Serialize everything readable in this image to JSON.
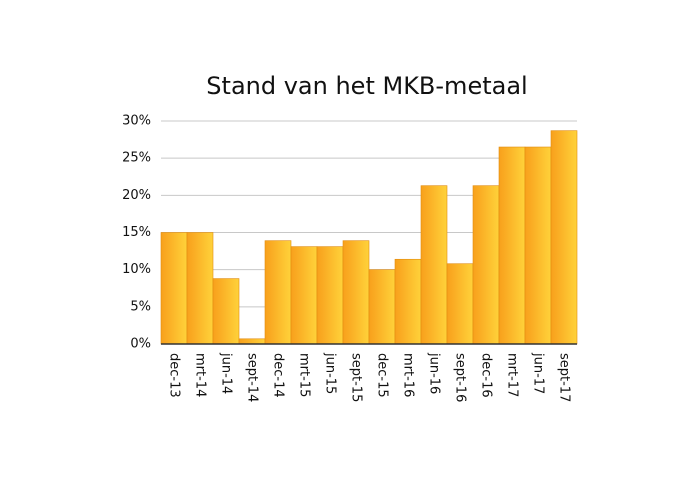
{
  "chart_data": {
    "type": "bar",
    "title": "Stand van het MKB-metaal",
    "categories": [
      "dec-13",
      "mrt-14",
      "jun-14",
      "sept-14",
      "dec-14",
      "mrt-15",
      "jun-15",
      "sept-15",
      "dec-15",
      "mrt-16",
      "jun-16",
      "sept-16",
      "dec-16",
      "mrt-17",
      "jun-17",
      "sept-17"
    ],
    "values": [
      15,
      15,
      8.8,
      0.7,
      13.9,
      13.1,
      13.1,
      13.9,
      10,
      11.4,
      21.3,
      10.8,
      21.3,
      26.5,
      26.5,
      28.7
    ],
    "color": "#f8a01c",
    "ylim": [
      0,
      30
    ],
    "yticks": [
      {
        "value": 0,
        "label": "0%"
      },
      {
        "value": 5,
        "label": "5%"
      },
      {
        "value": 10,
        "label": "10%"
      },
      {
        "value": 15,
        "label": "15%"
      },
      {
        "value": 20,
        "label": "20%"
      },
      {
        "value": 25,
        "label": "25%"
      },
      {
        "value": 30,
        "label": "30%"
      }
    ],
    "grid": true
  }
}
